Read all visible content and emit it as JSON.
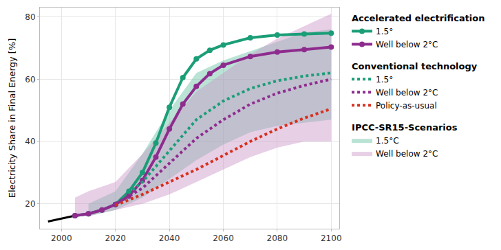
{
  "chart_data": {
    "type": "line",
    "y_label": "Electricity Share in Final Energy [%]",
    "xlim": [
      1992,
      2103
    ],
    "ylim": [
      12,
      83
    ],
    "xticks": [
      2000,
      2020,
      2040,
      2060,
      2080,
      2100
    ],
    "yticks": [
      20,
      40,
      60,
      80
    ],
    "grid": true,
    "legend": "right",
    "series": [
      {
        "color": "#000000",
        "line_style": "solid",
        "marker": "none",
        "x": [
          1995,
          2000,
          2005
        ],
        "values": [
          14.3,
          15.2,
          16.2
        ]
      },
      {
        "name": "1.5°",
        "group": "Accelerated electrification",
        "color": "#1b9e77",
        "line_style": "solid",
        "marker": "circle",
        "x": [
          2005,
          2010,
          2015,
          2020,
          2025,
          2030,
          2035,
          2040,
          2045,
          2050,
          2055,
          2060,
          2070,
          2080,
          2090,
          2100
        ],
        "values": [
          16.2,
          16.8,
          18.0,
          19.8,
          24.0,
          30.0,
          39.5,
          51.0,
          60.5,
          66.5,
          69.3,
          71.0,
          73.3,
          74.2,
          74.5,
          74.8
        ]
      },
      {
        "name": "Well below 2°C",
        "group": "Accelerated electrification",
        "color": "#8e2c8e",
        "line_style": "solid",
        "marker": "circle",
        "x": [
          2005,
          2010,
          2015,
          2020,
          2025,
          2030,
          2035,
          2040,
          2045,
          2050,
          2055,
          2060,
          2070,
          2080,
          2090,
          2100
        ],
        "values": [
          16.2,
          16.8,
          18.0,
          19.8,
          22.5,
          27.5,
          35.0,
          44.0,
          52.0,
          57.7,
          61.8,
          64.5,
          67.3,
          68.7,
          69.5,
          70.3
        ]
      },
      {
        "name": "1.5°",
        "group": "Conventional technology",
        "color": "#1b9e77",
        "line_style": "dot",
        "marker": "none",
        "x": [
          2020,
          2030,
          2040,
          2050,
          2060,
          2070,
          2080,
          2090,
          2100
        ],
        "values": [
          20.0,
          27.0,
          37.0,
          47.0,
          53.0,
          57.0,
          59.5,
          61.0,
          62.0
        ]
      },
      {
        "name": "Well below 2°C",
        "group": "Conventional technology",
        "color": "#8e2c8e",
        "line_style": "dot",
        "marker": "none",
        "x": [
          2020,
          2030,
          2040,
          2050,
          2060,
          2070,
          2080,
          2090,
          2100
        ],
        "values": [
          20.0,
          25.0,
          33.0,
          41.0,
          47.0,
          52.0,
          55.5,
          58.0,
          60.0
        ]
      },
      {
        "name": "Policy-as-usual",
        "group": "Conventional technology",
        "color": "#d7301f",
        "line_style": "dot",
        "marker": "none",
        "x": [
          2020,
          2030,
          2040,
          2050,
          2060,
          2070,
          2080,
          2090,
          2100
        ],
        "values": [
          19.5,
          23.0,
          27.0,
          31.0,
          35.5,
          40.0,
          44.0,
          47.5,
          50.5
        ]
      }
    ],
    "bands": [
      {
        "name": "1.5°C",
        "group": "IPCC-SR15-Scenarios",
        "color": "#66c2a5",
        "x": [
          2010,
          2020,
          2030,
          2040,
          2050,
          2060,
          2070,
          2080,
          2090,
          2100
        ],
        "lower": [
          16,
          18,
          22,
          28,
          34,
          39,
          43,
          45,
          46,
          47
        ],
        "upper": [
          20,
          24,
          36,
          50,
          62,
          66,
          69,
          72,
          75,
          76
        ]
      },
      {
        "name": "Well below 2°C",
        "group": "IPCC-SR15-Scenarios",
        "color": "#c994c7",
        "x": [
          2005,
          2010,
          2020,
          2030,
          2040,
          2050,
          2060,
          2070,
          2080,
          2090,
          2100
        ],
        "lower": [
          16,
          16,
          18,
          20,
          23,
          27,
          31,
          35,
          38,
          40,
          40
        ],
        "upper": [
          22,
          24,
          27,
          36,
          46,
          56,
          62,
          68,
          73,
          77,
          81
        ]
      }
    ]
  }
}
